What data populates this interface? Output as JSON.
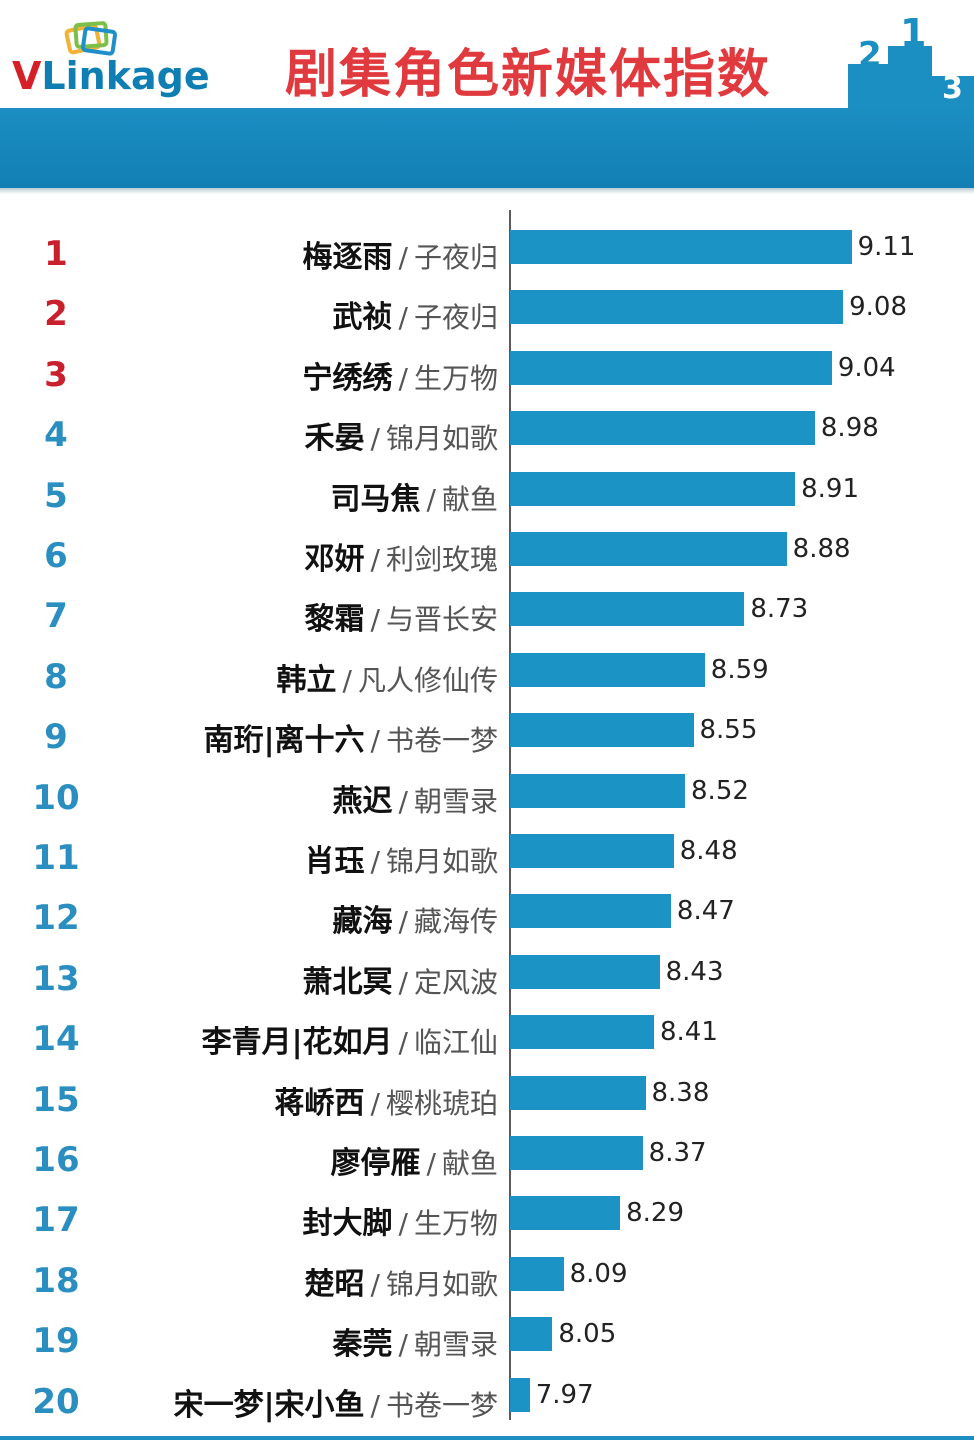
{
  "header": {
    "logo_text_v": "V",
    "logo_text_rest": "Linkage",
    "title": "剧集角色新媒体指数",
    "podium_labels": [
      "2",
      "1",
      "3"
    ]
  },
  "colors": {
    "accent_blue": "#1b93c4",
    "title_red": "#e0393e",
    "top_rank_red": "#c8202c",
    "rank_blue": "#2a8fc0"
  },
  "chart_data": {
    "type": "bar",
    "orientation": "horizontal",
    "value_range": [
      7.9,
      9.2
    ],
    "items": [
      {
        "rank": "1",
        "character": "梅逐雨",
        "drama": "子夜归",
        "value": 9.11
      },
      {
        "rank": "2",
        "character": "武祯",
        "drama": "子夜归",
        "value": 9.08
      },
      {
        "rank": "3",
        "character": "宁绣绣",
        "drama": "生万物",
        "value": 9.04
      },
      {
        "rank": "4",
        "character": "禾晏",
        "drama": "锦月如歌",
        "value": 8.98
      },
      {
        "rank": "5",
        "character": "司马焦",
        "drama": "献鱼",
        "value": 8.91
      },
      {
        "rank": "6",
        "character": "邓妍",
        "drama": "利剑玫瑰",
        "value": 8.88
      },
      {
        "rank": "7",
        "character": "黎霜",
        "drama": "与晋长安",
        "value": 8.73
      },
      {
        "rank": "8",
        "character": "韩立",
        "drama": "凡人修仙传",
        "value": 8.59
      },
      {
        "rank": "9",
        "character": "南珩|离十六",
        "drama": "书卷一梦",
        "value": 8.55
      },
      {
        "rank": "10",
        "character": "燕迟",
        "drama": "朝雪录",
        "value": 8.52
      },
      {
        "rank": "11",
        "character": "肖珏",
        "drama": "锦月如歌",
        "value": 8.48
      },
      {
        "rank": "12",
        "character": "藏海",
        "drama": "藏海传",
        "value": 8.47
      },
      {
        "rank": "13",
        "character": "萧北冥",
        "drama": "定风波",
        "value": 8.43
      },
      {
        "rank": "14",
        "character": "李青月|花如月",
        "drama": "临江仙",
        "value": 8.41
      },
      {
        "rank": "15",
        "character": "蒋峤西",
        "drama": "樱桃琥珀",
        "value": 8.38
      },
      {
        "rank": "16",
        "character": "廖停雁",
        "drama": "献鱼",
        "value": 8.37
      },
      {
        "rank": "17",
        "character": "封大脚",
        "drama": "生万物",
        "value": 8.29
      },
      {
        "rank": "18",
        "character": "楚昭",
        "drama": "锦月如歌",
        "value": 8.09
      },
      {
        "rank": "19",
        "character": "秦莞",
        "drama": "朝雪录",
        "value": 8.05
      },
      {
        "rank": "20",
        "character": "宋一梦|宋小鱼",
        "drama": "书卷一梦",
        "value": 7.97
      }
    ]
  }
}
